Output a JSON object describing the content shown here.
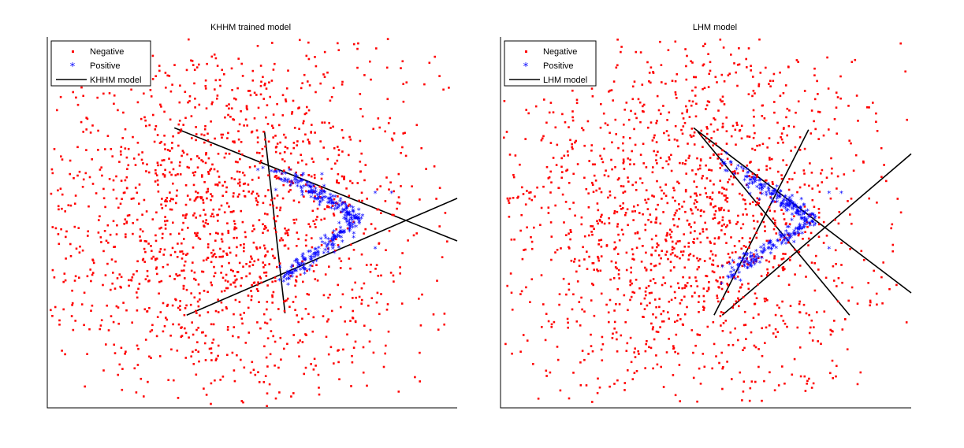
{
  "colors": {
    "negative": "#ff0000",
    "positive": "#0000ff",
    "model": "#000000",
    "axes": "#000000"
  },
  "chart_data": [
    {
      "type": "scatter",
      "title": "KHHM trained model",
      "xlabel": "",
      "ylabel": "",
      "xlim": [
        0,
        1
      ],
      "ylim": [
        0,
        1
      ],
      "axis_ticks": false,
      "legend": {
        "placement": "top-left",
        "entries": [
          "Negative",
          "Positive",
          "KHHM model"
        ]
      },
      "negative_cloud": {
        "center": [
          0.44,
          0.51
        ],
        "spread": [
          0.25,
          0.27
        ],
        "count": 1500
      },
      "positive_arms": [
        {
          "from": [
            0.6,
            0.62
          ],
          "to": [
            0.76,
            0.51
          ]
        },
        {
          "from": [
            0.58,
            0.35
          ],
          "to": [
            0.76,
            0.51
          ]
        },
        {
          "from": [
            0.53,
            0.65
          ],
          "to": [
            0.6,
            0.62
          ]
        }
      ],
      "positive_outliers": [
        [
          0.8,
          0.58
        ],
        [
          0.84,
          0.58
        ],
        [
          0.8,
          0.43
        ],
        [
          0.67,
          0.63
        ]
      ],
      "model_lines": [
        {
          "from": [
            0.31,
            0.755
          ],
          "to": [
            1.0,
            0.45
          ]
        },
        {
          "from": [
            0.34,
            0.25
          ],
          "to": [
            1.0,
            0.565
          ]
        },
        {
          "from": [
            0.53,
            0.745
          ],
          "to": [
            0.58,
            0.255
          ]
        }
      ]
    },
    {
      "type": "scatter",
      "title": "LHM model",
      "xlabel": "",
      "ylabel": "",
      "xlim": [
        0,
        1
      ],
      "ylim": [
        0,
        1
      ],
      "axis_ticks": false,
      "legend": {
        "placement": "top-left",
        "entries": [
          "Negative",
          "Positive",
          "LHM model"
        ]
      },
      "negative_cloud": {
        "center": [
          0.44,
          0.51
        ],
        "spread": [
          0.25,
          0.27
        ],
        "count": 1500
      },
      "positive_arms": [
        {
          "from": [
            0.6,
            0.62
          ],
          "to": [
            0.76,
            0.51
          ]
        },
        {
          "from": [
            0.55,
            0.35
          ],
          "to": [
            0.76,
            0.51
          ]
        },
        {
          "from": [
            0.54,
            0.67
          ],
          "to": [
            0.6,
            0.62
          ]
        }
      ],
      "positive_outliers": [
        [
          0.8,
          0.58
        ],
        [
          0.83,
          0.58
        ],
        [
          0.8,
          0.43
        ]
      ],
      "model_lines": [
        {
          "from": [
            0.47,
            0.755
          ],
          "to": [
            1.0,
            0.31
          ]
        },
        {
          "from": [
            0.48,
            0.745
          ],
          "to": [
            0.85,
            0.25
          ]
        },
        {
          "from": [
            0.52,
            0.25
          ],
          "to": [
            0.75,
            0.75
          ]
        },
        {
          "from": [
            0.54,
            0.25
          ],
          "to": [
            1.0,
            0.685
          ]
        }
      ]
    }
  ]
}
